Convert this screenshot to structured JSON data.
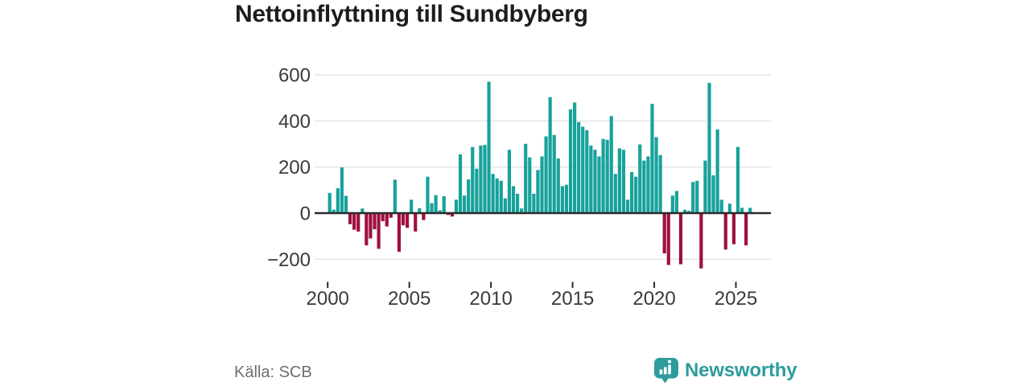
{
  "title": "Nettoinflyttning till Sundbyberg",
  "source": "Källa: SCB",
  "brand": {
    "name": "Newsworthy"
  },
  "colors": {
    "positive": "#17a29b",
    "negative": "#9e103e",
    "grid": "#e4e4e4",
    "axis": "#2b2b2b",
    "tick_label": "#3a3a3a",
    "title_text": "#1d1d1d",
    "source_text": "#6e6e6e",
    "brand_teal": "#2e9c9c"
  },
  "y_tick_labels": [
    "600",
    "400",
    "200",
    "0",
    "−200"
  ],
  "x_tick_labels": [
    "2000",
    "2005",
    "2010",
    "2015",
    "2020",
    "2025"
  ],
  "chart_data": {
    "type": "bar",
    "title": "Nettoinflyttning till Sundbyberg",
    "frequency": "quarterly",
    "start": "2000Q1",
    "end": "2025Q4",
    "grid": "horizontal",
    "legend": "none",
    "y_ticks": [
      600,
      400,
      200,
      0,
      -200
    ],
    "x_ticks": [
      2000,
      2005,
      2010,
      2015,
      2020,
      2025
    ],
    "ylim": [
      -260,
      630
    ],
    "positive_color": "#17a29b",
    "negative_color": "#9e103e",
    "values": [
      88,
      15,
      108,
      198,
      75,
      -48,
      -72,
      -80,
      20,
      -140,
      -110,
      -70,
      -155,
      -35,
      -58,
      -20,
      145,
      -168,
      -53,
      -64,
      58,
      -80,
      21,
      -30,
      158,
      43,
      78,
      12,
      73,
      -8,
      -15,
      58,
      255,
      76,
      146,
      287,
      193,
      293,
      296,
      570,
      170,
      150,
      140,
      64,
      275,
      117,
      84,
      20,
      301,
      242,
      84,
      187,
      246,
      333,
      503,
      339,
      237,
      117,
      123,
      450,
      480,
      395,
      375,
      360,
      293,
      275,
      246,
      322,
      318,
      421,
      170,
      281,
      275,
      58,
      178,
      158,
      298,
      228,
      246,
      474,
      330,
      252,
      -175,
      -225,
      76,
      96,
      -222,
      15,
      10,
      135,
      140,
      -240,
      228,
      565,
      164,
      363,
      58,
      -158,
      41,
      -135,
      287,
      23,
      -140,
      23
    ]
  }
}
